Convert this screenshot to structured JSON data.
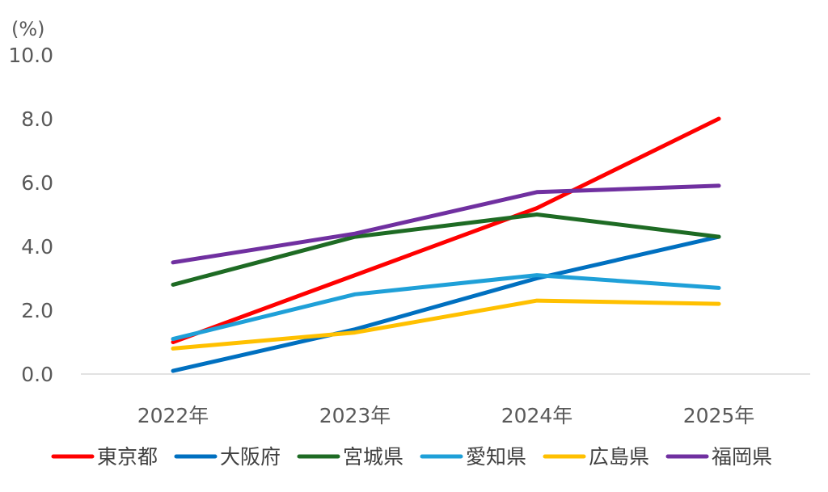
{
  "chart_data": {
    "type": "line",
    "y_unit": "(%)",
    "ylim": [
      0,
      10
    ],
    "y_ticks": [
      "0.0",
      "2.0",
      "4.0",
      "6.0",
      "8.0",
      "10.0"
    ],
    "y_tick_values": [
      0,
      2,
      4,
      6,
      8,
      10
    ],
    "categories": [
      "2022年",
      "2023年",
      "2024年",
      "2025年"
    ],
    "grid": false,
    "legend_position": "bottom",
    "series": [
      {
        "name": "東京都",
        "color": "#ff0000",
        "values": [
          1.0,
          3.1,
          5.2,
          8.0
        ]
      },
      {
        "name": "大阪府",
        "color": "#0070c0",
        "values": [
          0.1,
          1.4,
          3.0,
          4.3
        ]
      },
      {
        "name": "宮城県",
        "color": "#1e6b24",
        "values": [
          2.8,
          4.3,
          5.0,
          4.3
        ]
      },
      {
        "name": "愛知県",
        "color": "#1fa0d8",
        "values": [
          1.1,
          2.5,
          3.1,
          2.7
        ]
      },
      {
        "name": "広島県",
        "color": "#ffc000",
        "values": [
          0.8,
          1.3,
          2.3,
          2.2
        ]
      },
      {
        "name": "福岡県",
        "color": "#7030a0",
        "values": [
          3.5,
          4.4,
          5.7,
          5.9
        ]
      }
    ]
  }
}
